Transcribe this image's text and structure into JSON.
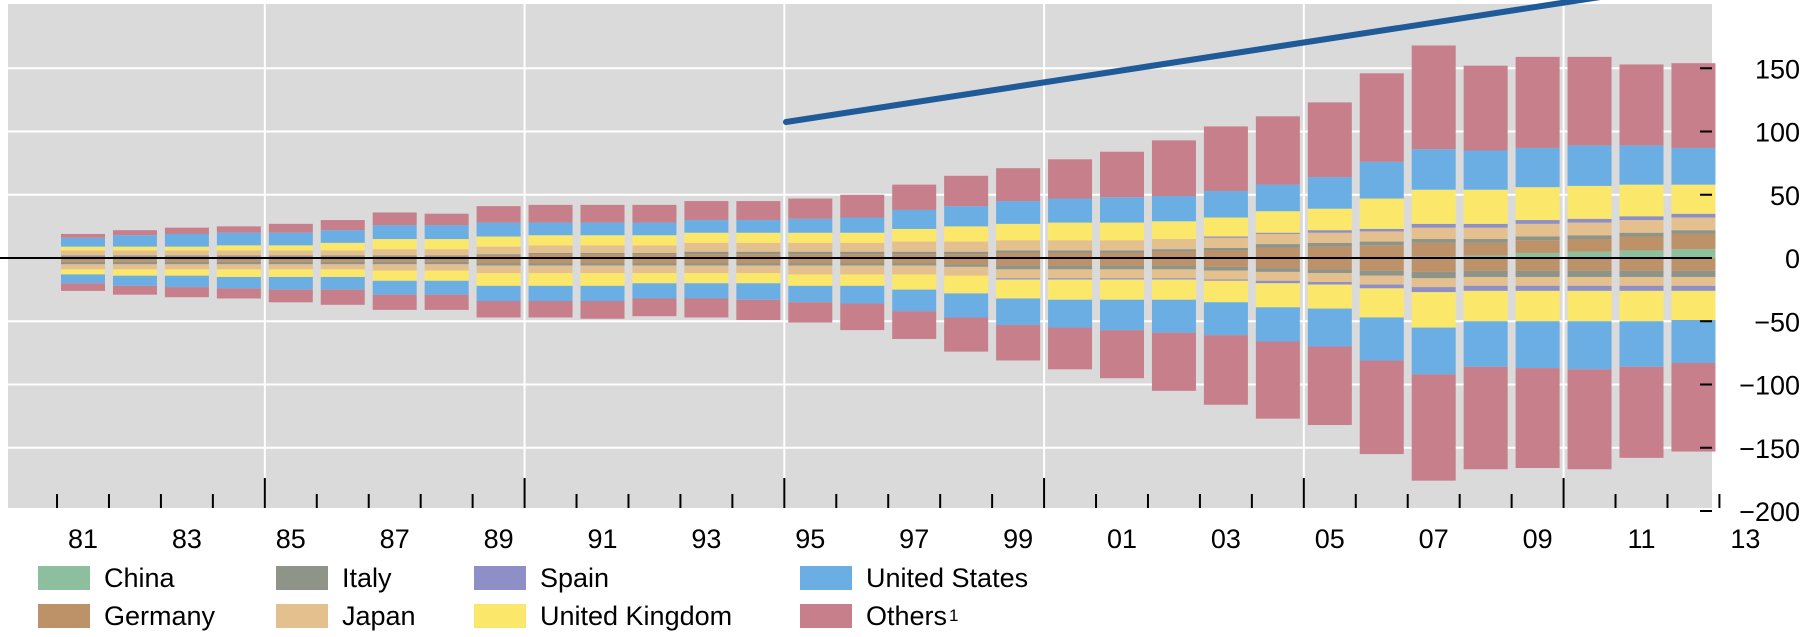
{
  "chart_data": {
    "type": "bar",
    "stacked": true,
    "categories": [
      "81",
      "82",
      "83",
      "84",
      "85",
      "86",
      "87",
      "88",
      "89",
      "90",
      "91",
      "92",
      "93",
      "94",
      "95",
      "96",
      "97",
      "98",
      "99",
      "00",
      "01",
      "02",
      "03",
      "04",
      "05",
      "06",
      "07",
      "08",
      "09",
      "10",
      "11",
      "12"
    ],
    "x_tick_labels": [
      "81",
      "83",
      "85",
      "87",
      "89",
      "91",
      "93",
      "95",
      "97",
      "99",
      "01",
      "03",
      "05",
      "07",
      "09",
      "11",
      "13"
    ],
    "y_tick_labels": [
      "150",
      "100",
      "50",
      "0",
      "−50",
      "−100",
      "−150",
      "−200"
    ],
    "y_ticks": [
      150,
      100,
      50,
      0,
      -50,
      -100,
      -150,
      -200
    ],
    "ylim": [
      -206,
      196
    ],
    "grid": true,
    "legend_position": "bottom-left",
    "series": [
      {
        "name": "China",
        "color": "#8dbf9e",
        "pos": [
          0,
          0,
          0,
          0,
          0,
          0,
          0,
          0,
          0,
          0,
          0,
          0,
          0,
          0,
          0,
          0,
          0,
          0,
          0,
          0,
          0,
          0,
          0,
          0,
          0,
          0,
          1,
          2,
          4,
          5,
          6,
          7
        ],
        "neg": [
          0,
          0,
          0,
          0,
          0,
          0,
          0,
          0,
          0,
          0,
          0,
          0,
          0,
          0,
          0,
          0,
          0,
          0,
          0,
          0,
          0,
          0,
          0,
          0,
          0,
          0,
          0,
          0,
          0,
          0,
          0,
          0
        ]
      },
      {
        "name": "Germany",
        "color": "#bd9268",
        "pos": [
          1,
          1,
          1,
          1,
          1,
          1,
          1,
          1,
          2,
          3,
          3,
          3,
          3,
          3,
          3,
          3,
          3,
          3,
          4,
          4,
          4,
          5,
          6,
          8,
          9,
          10,
          11,
          10,
          10,
          10,
          11,
          12
        ],
        "neg": [
          3,
          3,
          3,
          3,
          3,
          3,
          3,
          3,
          4,
          4,
          4,
          4,
          4,
          4,
          4,
          4,
          4,
          5,
          6,
          6,
          6,
          6,
          7,
          8,
          9,
          10,
          11,
          10,
          10,
          10,
          10,
          10
        ]
      },
      {
        "name": "Italy",
        "color": "#8f9489",
        "pos": [
          1,
          1,
          1,
          1,
          1,
          1,
          1,
          1,
          1,
          1,
          1,
          1,
          2,
          2,
          2,
          2,
          2,
          2,
          2,
          2,
          2,
          2,
          2,
          3,
          3,
          3,
          3,
          3,
          3,
          3,
          3,
          3
        ],
        "neg": [
          2,
          2,
          2,
          2,
          2,
          2,
          2,
          2,
          2,
          2,
          2,
          2,
          2,
          2,
          2,
          2,
          2,
          2,
          3,
          3,
          3,
          3,
          3,
          3,
          3,
          4,
          5,
          5,
          5,
          5,
          5,
          5
        ]
      },
      {
        "name": "Japan",
        "color": "#e4c08e",
        "pos": [
          4,
          4,
          4,
          4,
          4,
          4,
          5,
          5,
          6,
          6,
          6,
          6,
          7,
          7,
          7,
          7,
          8,
          8,
          8,
          8,
          8,
          8,
          8,
          8,
          8,
          8,
          9,
          9,
          10,
          10,
          10,
          10
        ],
        "neg": [
          4,
          4,
          4,
          4,
          4,
          4,
          5,
          5,
          6,
          6,
          6,
          6,
          6,
          6,
          7,
          7,
          7,
          7,
          7,
          7,
          7,
          7,
          7,
          7,
          7,
          7,
          7,
          7,
          7,
          7,
          7,
          7
        ]
      },
      {
        "name": "Spain",
        "color": "#8f8fc8",
        "pos": [
          0,
          0,
          0,
          0,
          0,
          0,
          0,
          0,
          0,
          0,
          0,
          0,
          0,
          0,
          0,
          0,
          0,
          0,
          0,
          0,
          0,
          0,
          1,
          1,
          2,
          2,
          3,
          3,
          3,
          3,
          3,
          3
        ],
        "neg": [
          0,
          0,
          0,
          0,
          0,
          0,
          0,
          0,
          0,
          0,
          0,
          0,
          0,
          0,
          0,
          0,
          0,
          0,
          1,
          1,
          1,
          1,
          1,
          2,
          2,
          3,
          4,
          4,
          4,
          4,
          4,
          4
        ]
      },
      {
        "name": "United Kingdom",
        "color": "#fbe86a",
        "pos": [
          3,
          3,
          3,
          4,
          4,
          6,
          8,
          8,
          8,
          8,
          8,
          8,
          8,
          8,
          8,
          8,
          10,
          12,
          13,
          14,
          14,
          14,
          15,
          17,
          17,
          24,
          27,
          27,
          26,
          26,
          25,
          23
        ],
        "neg": [
          4,
          5,
          5,
          6,
          6,
          6,
          8,
          8,
          10,
          10,
          10,
          8,
          8,
          8,
          9,
          9,
          12,
          14,
          15,
          16,
          16,
          16,
          17,
          19,
          19,
          23,
          28,
          24,
          24,
          24,
          24,
          23
        ]
      },
      {
        "name": "United States",
        "color": "#6aaee3",
        "pos": [
          7,
          9,
          10,
          10,
          10,
          10,
          11,
          11,
          11,
          10,
          10,
          10,
          10,
          10,
          11,
          12,
          15,
          16,
          18,
          19,
          20,
          20,
          21,
          21,
          25,
          29,
          32,
          31,
          31,
          32,
          31,
          29
        ],
        "neg": [
          7,
          8,
          9,
          9,
          10,
          10,
          11,
          11,
          12,
          12,
          12,
          12,
          12,
          13,
          13,
          14,
          17,
          19,
          21,
          22,
          24,
          26,
          26,
          27,
          30,
          34,
          37,
          36,
          37,
          38,
          36,
          34
        ]
      },
      {
        "name": "Others",
        "color": "#c67f8b",
        "pos": [
          3,
          4,
          5,
          5,
          7,
          8,
          10,
          9,
          13,
          14,
          14,
          14,
          15,
          15,
          16,
          18,
          20,
          24,
          26,
          31,
          36,
          44,
          51,
          54,
          59,
          70,
          82,
          67,
          72,
          70,
          64,
          67
        ],
        "neg": [
          6,
          7,
          8,
          8,
          10,
          12,
          12,
          12,
          13,
          13,
          14,
          14,
          15,
          16,
          16,
          21,
          22,
          27,
          28,
          33,
          38,
          46,
          55,
          61,
          62,
          74,
          84,
          81,
          79,
          79,
          72,
          70
        ]
      }
    ]
  },
  "legend": {
    "china": "China",
    "germany": "Germany",
    "italy": "Italy",
    "japan": "Japan",
    "spain": "Spain",
    "uk": "United Kingdom",
    "us": "United States",
    "others": "Others",
    "others_note": "1"
  },
  "colors": {
    "plot_background": "#dadada",
    "gridline": "#ffffff",
    "trend_line": "#1f5a99"
  }
}
